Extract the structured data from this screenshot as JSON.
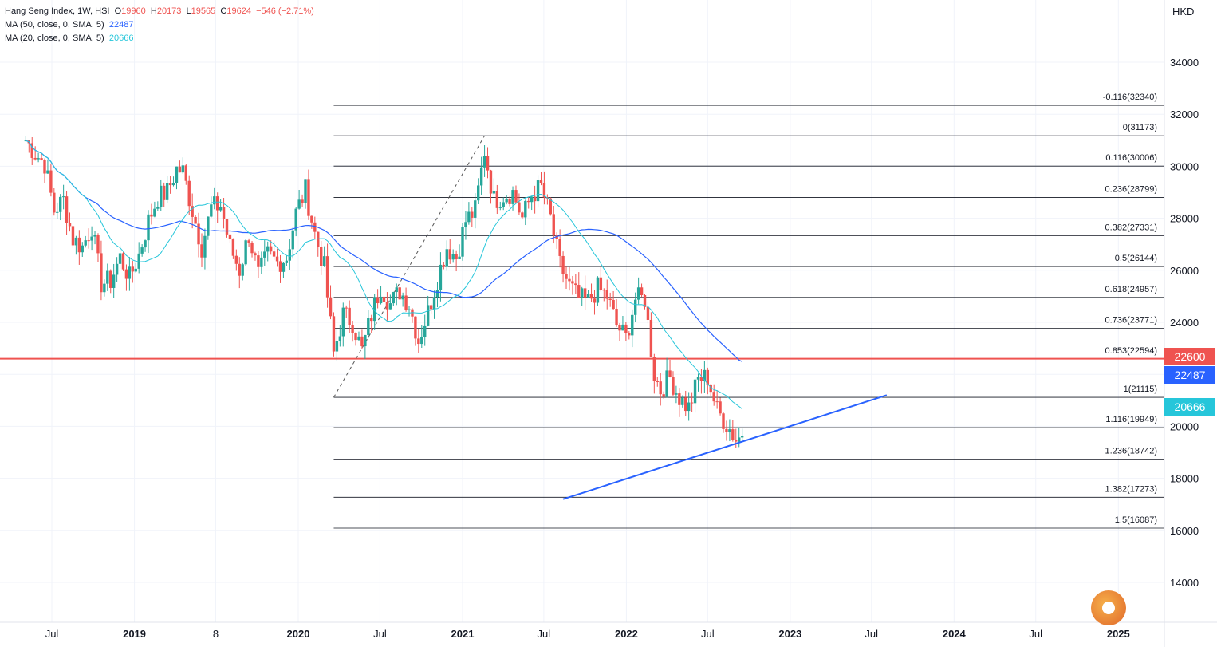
{
  "legend": {
    "line1_name": "Hang Seng Index, 1W, HSI",
    "o_label": "O",
    "o_value": "19960",
    "h_label": "H",
    "h_value": "20173",
    "l_label": "L",
    "l_value": "19565",
    "c_label": "C",
    "c_value": "19624",
    "change": "−546 (−2.71%)",
    "ma50_label": "MA (50, close, 0, SMA, 5)",
    "ma50_value": "22487",
    "ma20_label": "MA (20, close, 0, SMA, 5)",
    "ma20_value": "20666"
  },
  "axis": {
    "currency": "HKD",
    "y_ticks": [
      "34000",
      "32000",
      "30000",
      "28000",
      "26000",
      "24000",
      "22000",
      "20000",
      "18000",
      "16000",
      "14000"
    ],
    "x_labels": [
      {
        "text": "Jul",
        "bold": false
      },
      {
        "text": "2019",
        "bold": true
      },
      {
        "text": "8",
        "bold": false
      },
      {
        "text": "2020",
        "bold": true
      },
      {
        "text": "Jul",
        "bold": false
      },
      {
        "text": "2021",
        "bold": true
      },
      {
        "text": "Jul",
        "bold": false
      },
      {
        "text": "2022",
        "bold": true
      },
      {
        "text": "Jul",
        "bold": false
      },
      {
        "text": "2023",
        "bold": true
      },
      {
        "text": "Jul",
        "bold": false
      },
      {
        "text": "2024",
        "bold": true
      },
      {
        "text": "Jul",
        "bold": false
      },
      {
        "text": "2025",
        "bold": true
      }
    ]
  },
  "price_tags": [
    {
      "value": "22600",
      "color": "#ef5350"
    },
    {
      "value": "22487",
      "color": "#2962ff"
    },
    {
      "value": "20666",
      "color": "#26c6da"
    }
  ],
  "colors": {
    "up": "#26a69a",
    "down": "#ef5350",
    "ma50": "#2962ff",
    "ma20": "#26c6da",
    "hline": "#ef5350",
    "trend": "#2962ff",
    "fib": "#131722",
    "grid": "#f0f3fa"
  },
  "chart_data": {
    "type": "candlestick",
    "title": "Hang Seng Index, 1W, HSI",
    "ylabel": "HKD",
    "ylim": [
      13000,
      36500
    ],
    "x_range": [
      "2018-05-01",
      "2025-04-01"
    ],
    "horizontal_line": 22600,
    "fibonacci": [
      {
        "ratio": "-0.116",
        "value": 32340
      },
      {
        "ratio": "0",
        "value": 31173
      },
      {
        "ratio": "0.116",
        "value": 30006
      },
      {
        "ratio": "0.236",
        "value": 28799
      },
      {
        "ratio": "0.382",
        "value": 27331
      },
      {
        "ratio": "0.5",
        "value": 26144
      },
      {
        "ratio": "0.618",
        "value": 24957
      },
      {
        "ratio": "0.736",
        "value": 23771
      },
      {
        "ratio": "0.853",
        "value": 22594
      },
      {
        "ratio": "1",
        "value": 21115
      },
      {
        "ratio": "1.116",
        "value": 19949
      },
      {
        "ratio": "1.236",
        "value": 18742
      },
      {
        "ratio": "1.382",
        "value": 17273
      },
      {
        "ratio": "1.5",
        "value": 16087
      }
    ],
    "fib_start": "2020-03-20",
    "fib_end": "2025-04-01",
    "fib_anchor_line": [
      {
        "date": "2020-03-20",
        "value": 21115
      },
      {
        "date": "2021-02-19",
        "value": 31173
      }
    ],
    "trendline": [
      {
        "date": "2021-08-13",
        "value": 17200
      },
      {
        "date": "2023-08-04",
        "value": 21200
      }
    ],
    "ma50_last": 22487,
    "ma20_last": 20666,
    "close_points": [
      [
        "2018-05-04",
        31000
      ],
      [
        "2018-05-25",
        30500
      ],
      [
        "2018-06-15",
        30100
      ],
      [
        "2018-07-06",
        28300
      ],
      [
        "2018-07-27",
        28700
      ],
      [
        "2018-08-17",
        27200
      ],
      [
        "2018-09-07",
        26900
      ],
      [
        "2018-09-28",
        27700
      ],
      [
        "2018-10-19",
        25500
      ],
      [
        "2018-11-09",
        25600
      ],
      [
        "2018-11-30",
        26500
      ],
      [
        "2018-12-21",
        25700
      ],
      [
        "2019-01-11",
        26600
      ],
      [
        "2019-02-01",
        27900
      ],
      [
        "2019-02-22",
        28800
      ],
      [
        "2019-03-15",
        29000
      ],
      [
        "2019-04-05",
        29900
      ],
      [
        "2019-04-19",
        29800
      ],
      [
        "2019-05-10",
        28300
      ],
      [
        "2019-05-31",
        26900
      ],
      [
        "2019-06-21",
        28400
      ],
      [
        "2019-07-12",
        28500
      ],
      [
        "2019-08-02",
        26900
      ],
      [
        "2019-08-23",
        26000
      ],
      [
        "2019-09-13",
        27400
      ],
      [
        "2019-10-04",
        25800
      ],
      [
        "2019-10-25",
        26600
      ],
      [
        "2019-11-15",
        26300
      ],
      [
        "2019-12-06",
        26500
      ],
      [
        "2019-12-27",
        28200
      ],
      [
        "2020-01-17",
        29100
      ],
      [
        "2020-02-07",
        27400
      ],
      [
        "2020-02-28",
        26100
      ],
      [
        "2020-03-20",
        22800
      ],
      [
        "2020-04-10",
        24300
      ],
      [
        "2020-05-01",
        24000
      ],
      [
        "2020-05-22",
        22900
      ],
      [
        "2020-06-12",
        24300
      ],
      [
        "2020-07-03",
        25400
      ],
      [
        "2020-07-24",
        24700
      ],
      [
        "2020-08-14",
        25200
      ],
      [
        "2020-09-04",
        24700
      ],
      [
        "2020-09-25",
        23300
      ],
      [
        "2020-10-16",
        24400
      ],
      [
        "2020-11-06",
        25700
      ],
      [
        "2020-11-27",
        26900
      ],
      [
        "2020-12-18",
        26500
      ],
      [
        "2021-01-08",
        27900
      ],
      [
        "2021-01-29",
        28300
      ],
      [
        "2021-02-19",
        30600
      ],
      [
        "2021-03-12",
        28700
      ],
      [
        "2021-04-02",
        28900
      ],
      [
        "2021-04-23",
        29000
      ],
      [
        "2021-05-14",
        28000
      ],
      [
        "2021-06-04",
        28900
      ],
      [
        "2021-06-25",
        29200
      ],
      [
        "2021-07-16",
        28000
      ],
      [
        "2021-08-06",
        26200
      ],
      [
        "2021-08-27",
        25400
      ],
      [
        "2021-09-17",
        24900
      ],
      [
        "2021-10-08",
        24800
      ],
      [
        "2021-10-29",
        25300
      ],
      [
        "2021-11-19",
        25000
      ],
      [
        "2021-12-10",
        23900
      ],
      [
        "2021-12-31",
        23400
      ],
      [
        "2022-01-21",
        24900
      ],
      [
        "2022-02-11",
        24900
      ],
      [
        "2022-03-04",
        22000
      ],
      [
        "2022-03-18",
        21400
      ],
      [
        "2022-04-08",
        21900
      ],
      [
        "2022-04-29",
        21100
      ],
      [
        "2022-05-20",
        20700
      ],
      [
        "2022-06-10",
        21800
      ],
      [
        "2022-07-01",
        21900
      ],
      [
        "2022-07-22",
        20600
      ],
      [
        "2022-08-12",
        20100
      ],
      [
        "2022-09-02",
        19500
      ],
      [
        "2022-09-16",
        19624
      ]
    ]
  }
}
